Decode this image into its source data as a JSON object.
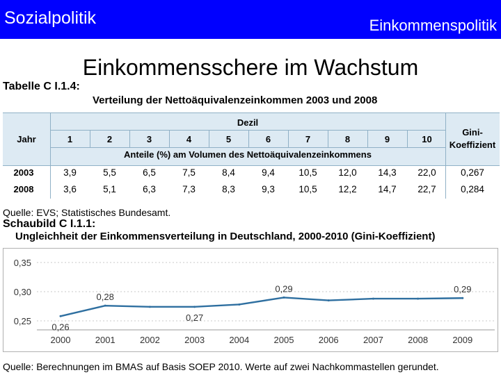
{
  "header": {
    "left_title": "Sozialpolitik",
    "right_title": "Einkommenspolitik"
  },
  "slide_title": "Einkommensschere im Wachstum",
  "table": {
    "label": "Tabelle C I.1.4:",
    "title": "Verteilung der Nettoäquivalenzeinkommen 2003 und 2008",
    "col_jahr": "Jahr",
    "col_dezil": "Dezil",
    "col_gini_line1": "Gini-",
    "col_gini_line2": "Koeffizient",
    "deciles": [
      "1",
      "2",
      "3",
      "4",
      "5",
      "6",
      "7",
      "8",
      "9",
      "10"
    ],
    "subheader": "Anteile (%) am Volumen des Nettoäquivalenzeinkommens",
    "rows": [
      {
        "year": "2003",
        "values": [
          "3,9",
          "5,5",
          "6,5",
          "7,5",
          "8,4",
          "9,4",
          "10,5",
          "12,0",
          "14,3",
          "22,0"
        ],
        "gini": "0,267"
      },
      {
        "year": "2008",
        "values": [
          "3,6",
          "5,1",
          "6,3",
          "7,3",
          "8,3",
          "9,3",
          "10,5",
          "12,2",
          "14,7",
          "22,7"
        ],
        "gini": "0,284"
      }
    ]
  },
  "quelle_table": "Quelle: EVS; Statistisches Bundesamt.",
  "schaubild": {
    "label": "Schaubild C I.1.1:",
    "title": "Ungleichheit der Einkommensverteilung in Deutschland, 2000-2010 (Gini-Koeffizient)"
  },
  "chart_data": {
    "type": "line",
    "title": "",
    "xlabel": "",
    "ylabel": "",
    "x": [
      "2000",
      "2001",
      "2002",
      "2003",
      "2004",
      "2005",
      "2006",
      "2007",
      "2008",
      "2009"
    ],
    "series": [
      {
        "values": [
          0.258,
          0.276,
          0.274,
          0.274,
          0.278,
          0.29,
          0.285,
          0.288,
          0.288,
          0.289
        ]
      }
    ],
    "ylim": [
      0.25,
      0.35
    ],
    "yticks": [
      "0,25",
      "0,30",
      "0,35"
    ],
    "data_labels": [
      {
        "index": 0,
        "text": "0,26"
      },
      {
        "index": 1,
        "text": "0,28"
      },
      {
        "index": 3,
        "text": "0,27"
      },
      {
        "index": 5,
        "text": "0,29"
      },
      {
        "index": 9,
        "text": "0,29"
      }
    ],
    "line_color": "#2e6fa0",
    "grid": true,
    "legend": "none"
  },
  "quelle_chart": "Quelle: Berechnungen im BMAS auf Basis SOEP 2010. Werte auf zwei Nachkommastellen gerundet."
}
